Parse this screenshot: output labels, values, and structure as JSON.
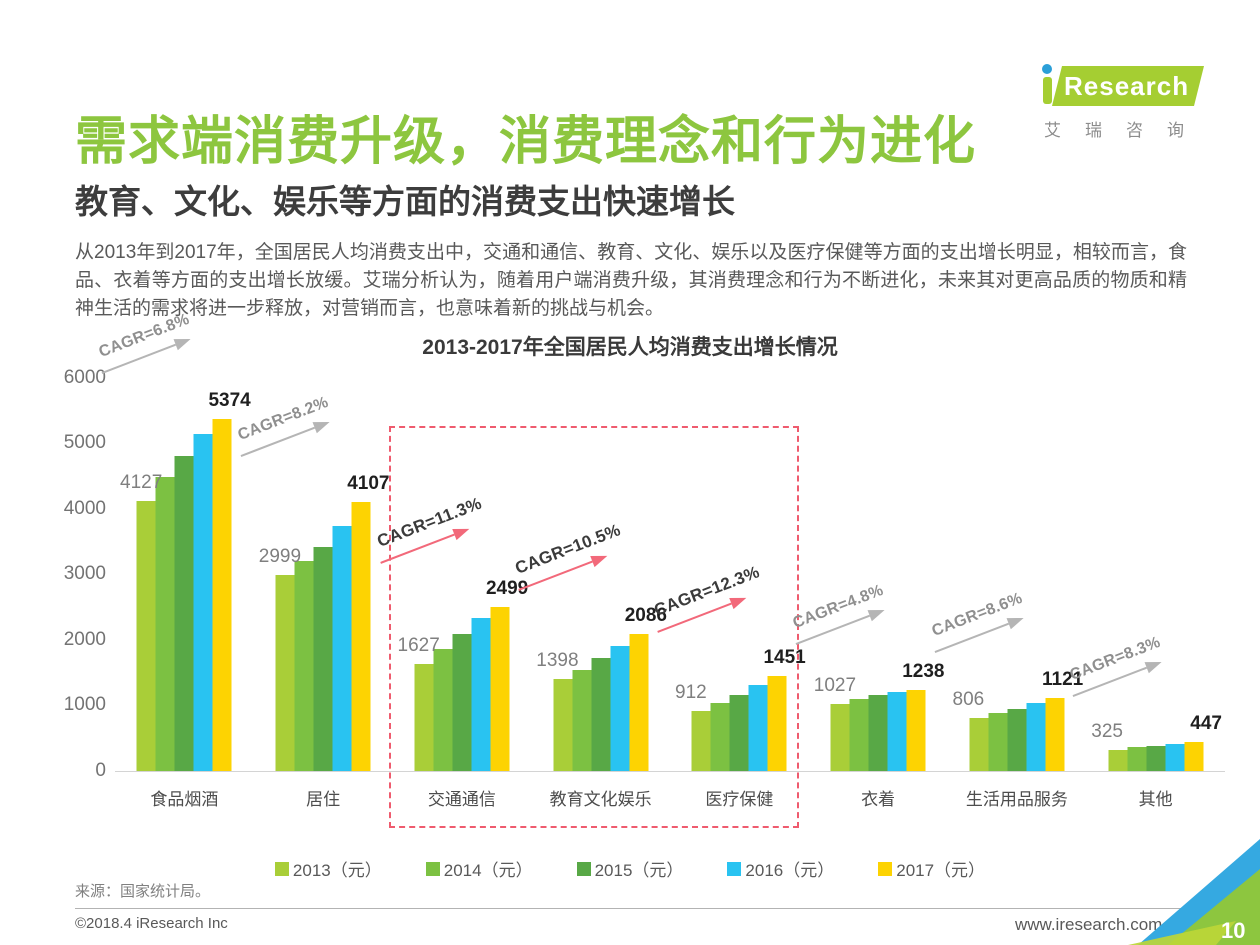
{
  "page": {
    "title": "需求端消费升级，消费理念和行为进化",
    "subtitle": "教育、文化、娱乐等方面的消费支出快速增长",
    "body": "从2013年到2017年，全国居民人均消费支出中，交通和通信、教育、文化、娱乐以及医疗保健等方面的支出增长明显，相较而言，食品、衣着等方面的支出增长放缓。艾瑞分析认为，随着用户端消费升级，其消费理念和行为不断进化，未来其对更高品质的物质和精神生活的需求将进一步释放，对营销而言，也意味着新的挑战与机会。"
  },
  "logo": {
    "brand": "Research",
    "caption": "艾瑞咨询",
    "green": "#a5ce32",
    "dot_blue": "#2b9fd8"
  },
  "chart_data": {
    "type": "bar",
    "title": "2013-2017年全国居民人均消费支出增长情况",
    "categories": [
      "食品烟酒",
      "居住",
      "交通通信",
      "教育文化娱乐",
      "医疗保健",
      "衣着",
      "生活用品服务",
      "其他"
    ],
    "series": [
      {
        "name": "2013（元）",
        "color": "#a9ce38",
        "values": [
          4127,
          2999,
          1627,
          1398,
          912,
          1027,
          806,
          325
        ]
      },
      {
        "name": "2014（元）",
        "color": "#7cc142",
        "values": [
          4494,
          3201,
          1869,
          1536,
          1045,
          1099,
          890,
          363
        ]
      },
      {
        "name": "2015（元）",
        "color": "#58a846",
        "values": [
          4814,
          3419,
          2087,
          1723,
          1165,
          1164,
          951,
          389
        ]
      },
      {
        "name": "2016（元）",
        "color": "#29c3f1",
        "values": [
          5151,
          3746,
          2338,
          1915,
          1307,
          1203,
          1044,
          406
        ]
      },
      {
        "name": "2017（元）",
        "color": "#fdd302",
        "values": [
          5374,
          4107,
          2499,
          2086,
          1451,
          1238,
          1121,
          447
        ]
      }
    ],
    "value_labels_shown_for": [
      "2013（元）",
      "2017（元）"
    ],
    "cagr_labels": [
      "CAGR=6.8%",
      "CAGR=8.2%",
      "CAGR=11.3%",
      "CAGR=10.5%",
      "CAGR=12.3%",
      "CAGR=4.8%",
      "CAGR=8.6%",
      "CAGR=8.3%"
    ],
    "cagr_highlighted": [
      false,
      false,
      true,
      true,
      true,
      false,
      false,
      false
    ],
    "highlight_box": {
      "categories": [
        "交通通信",
        "教育文化娱乐",
        "医疗保健"
      ],
      "color": "#ef5b6e"
    },
    "ylim": [
      0,
      6000
    ],
    "yticks": [
      0,
      1000,
      2000,
      3000,
      4000,
      5000,
      6000
    ],
    "xlabel": "",
    "ylabel": "",
    "grid": false,
    "legend_position": "bottom",
    "arrow_color_normal": "#b5b5b5",
    "arrow_color_highlight": "#f2697a"
  },
  "source": "来源：国家统计局。",
  "footer": {
    "left": "©2018.4 iResearch Inc",
    "right": "www.iresearch.com.cn",
    "page_number": "10"
  }
}
